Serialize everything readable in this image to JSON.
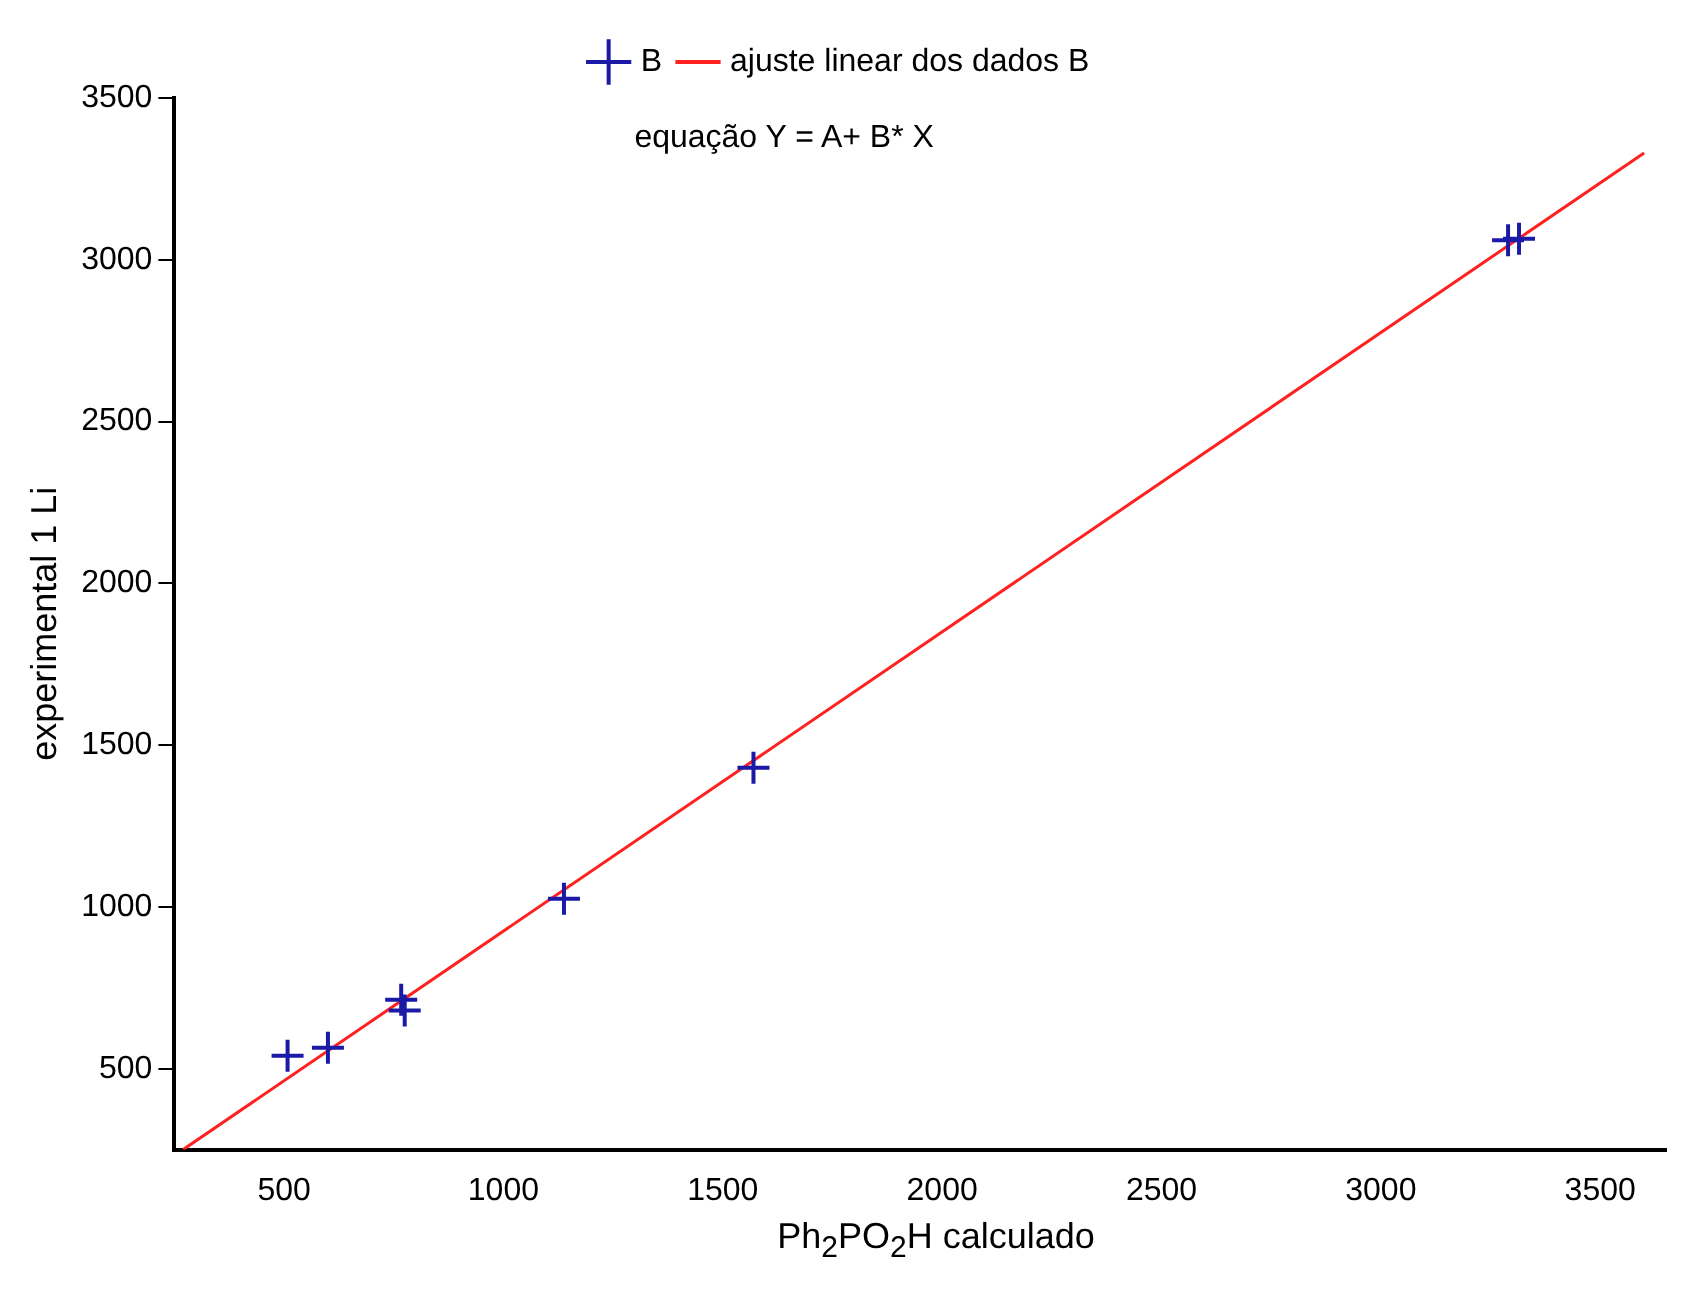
{
  "chart_data": {
    "type": "scatter",
    "xlabel": "Ph$_{2}$PO$_{2}$H calculado",
    "ylabel": "experimental 1 Li",
    "annotations": [
      "equação Y = A+ B* X"
    ],
    "xlim": [
      250,
      3650
    ],
    "xticks": [
      500,
      1000,
      1500,
      2000,
      2500,
      3000,
      3500
    ],
    "ylim": [
      250,
      3500
    ],
    "yticks": [
      500,
      1000,
      1500,
      2000,
      2500,
      3000,
      3500
    ],
    "grid": false,
    "legend": "top",
    "marker": "cross",
    "series": [
      {
        "name": "B",
        "color": "#1a1aa6",
        "x": [
          508,
          600,
          767,
          775,
          1138,
          1570,
          3290,
          3315
        ],
        "values": [
          540,
          565,
          713,
          680,
          1025,
          1430,
          3060,
          3065
        ]
      },
      {
        "name": "ajuste linear dos dados B",
        "type": "line",
        "color": "#ff2020",
        "marker": "none",
        "x": [
          270,
          3600
        ],
        "values": [
          250,
          3330
        ]
      }
    ]
  }
}
